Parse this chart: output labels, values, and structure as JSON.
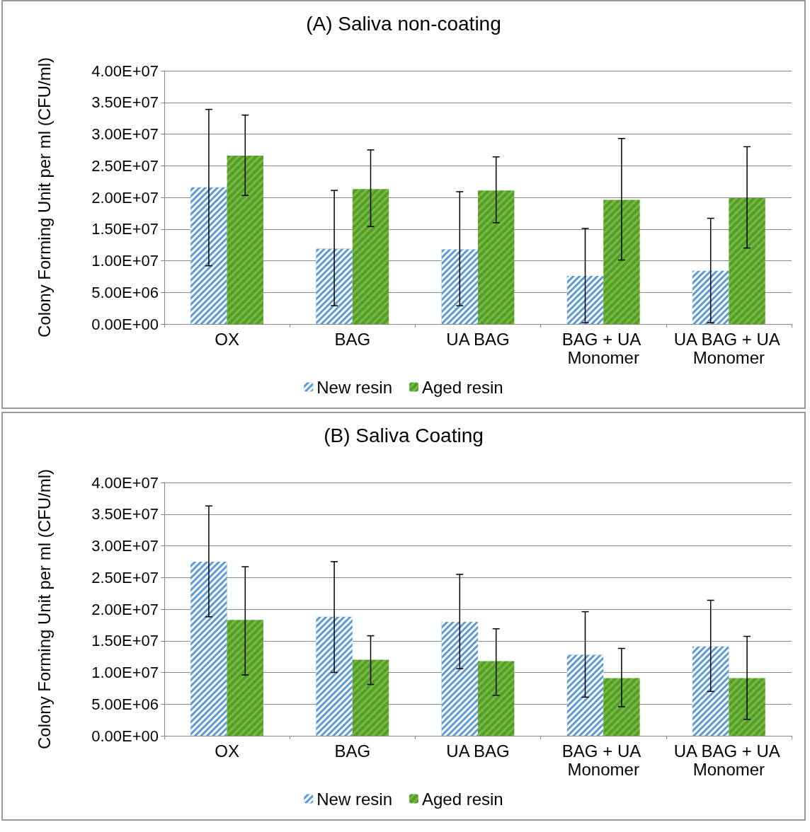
{
  "chart_data": [
    {
      "type": "bar",
      "title": "(A) Saliva non-coating",
      "ylabel": "Colony Forming Unit per ml (CFU/ml)",
      "categories": [
        "OX",
        "BAG",
        "UA BAG",
        "BAG + UA Monomer",
        "UA BAG + UA Monomer"
      ],
      "series": [
        {
          "name": "New resin",
          "color": "#5b9bd5",
          "values": [
            21600000,
            11900000,
            11800000,
            7600000,
            8400000
          ],
          "errors": [
            [
              9200000,
              33900000
            ],
            [
              2900000,
              21100000
            ],
            [
              2900000,
              20900000
            ],
            [
              200000,
              15100000
            ],
            [
              200000,
              16700000
            ]
          ]
        },
        {
          "name": "Aged resin",
          "color": "#70bf3a",
          "values": [
            26600000,
            21300000,
            21100000,
            19600000,
            19900000
          ],
          "errors": [
            [
              20300000,
              33000000
            ],
            [
              15400000,
              27500000
            ],
            [
              16000000,
              26400000
            ],
            [
              10100000,
              29300000
            ],
            [
              12000000,
              28000000
            ]
          ]
        }
      ],
      "ylim": [
        0,
        40000000
      ],
      "yticks": [
        {
          "value": 0,
          "label": "0.00E+00"
        },
        {
          "value": 5000000,
          "label": "5.00E+06"
        },
        {
          "value": 10000000,
          "label": "1.00E+07"
        },
        {
          "value": 15000000,
          "label": "1.50E+07"
        },
        {
          "value": 20000000,
          "label": "2.00E+07"
        },
        {
          "value": 25000000,
          "label": "2.50E+07"
        },
        {
          "value": 30000000,
          "label": "3.00E+07"
        },
        {
          "value": 35000000,
          "label": "3.50E+07"
        },
        {
          "value": 40000000,
          "label": "4.00E+07"
        }
      ],
      "grid": "y",
      "legend": "bottom"
    },
    {
      "type": "bar",
      "title": "(B) Saliva Coating",
      "ylabel": "Colony Forming Unit per ml (CFU/ml)",
      "categories": [
        "OX",
        "BAG",
        "UA BAG",
        "BAG + UA Monomer",
        "UA BAG + UA Monomer"
      ],
      "series": [
        {
          "name": "New resin",
          "color": "#5b9bd5",
          "values": [
            27500000,
            18800000,
            18000000,
            12800000,
            14100000
          ],
          "errors": [
            [
              18800000,
              36300000
            ],
            [
              10000000,
              27500000
            ],
            [
              10600000,
              25500000
            ],
            [
              6100000,
              19600000
            ],
            [
              7000000,
              21400000
            ]
          ]
        },
        {
          "name": "Aged resin",
          "color": "#70bf3a",
          "values": [
            18300000,
            12000000,
            11800000,
            9100000,
            9100000
          ],
          "errors": [
            [
              9600000,
              26700000
            ],
            [
              8100000,
              15800000
            ],
            [
              6400000,
              16900000
            ],
            [
              4600000,
              13800000
            ],
            [
              2600000,
              15700000
            ]
          ]
        }
      ],
      "ylim": [
        0,
        40000000
      ],
      "yticks": [
        {
          "value": 0,
          "label": "0.00E+00"
        },
        {
          "value": 5000000,
          "label": "5.00E+06"
        },
        {
          "value": 10000000,
          "label": "1.00E+07"
        },
        {
          "value": 15000000,
          "label": "1.50E+07"
        },
        {
          "value": 20000000,
          "label": "2.00E+07"
        },
        {
          "value": 25000000,
          "label": "2.50E+07"
        },
        {
          "value": 30000000,
          "label": "3.00E+07"
        },
        {
          "value": 35000000,
          "label": "3.50E+07"
        },
        {
          "value": 40000000,
          "label": "4.00E+07"
        }
      ],
      "grid": "y",
      "legend": "bottom"
    }
  ]
}
